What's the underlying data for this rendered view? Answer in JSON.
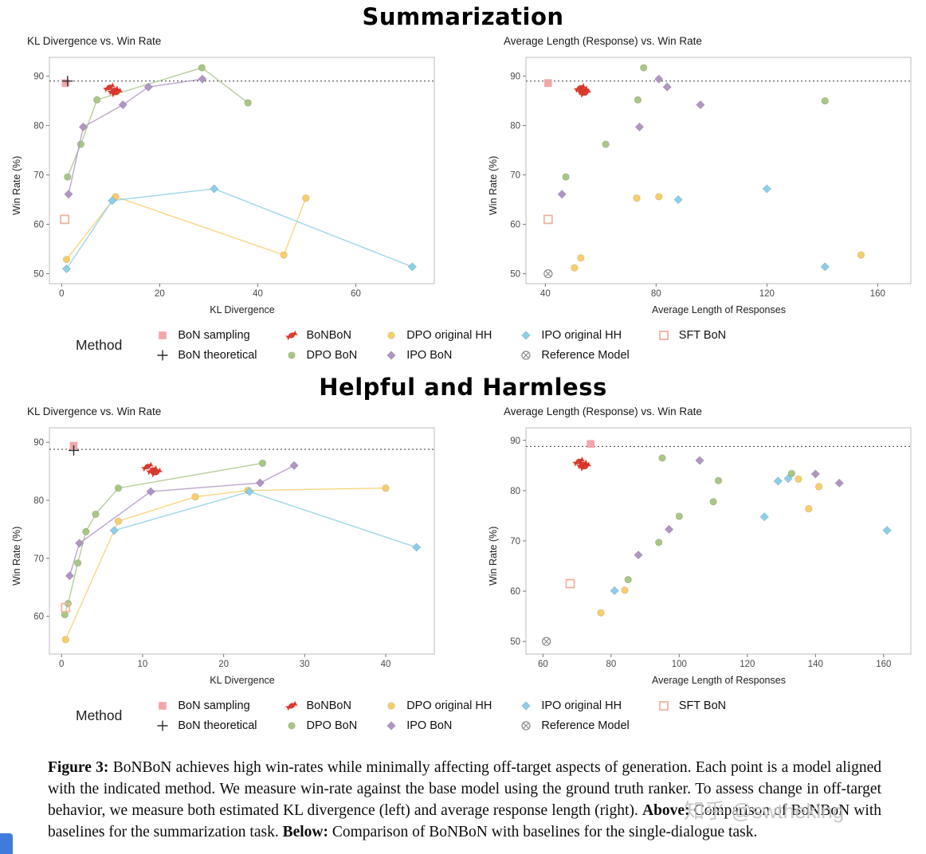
{
  "sections": [
    {
      "title": "Summarization"
    },
    {
      "title": "Helpful and Harmless"
    }
  ],
  "legend": {
    "label": "Method",
    "items": [
      {
        "name": "BoN sampling",
        "marker": "square",
        "color": "#f2a6a8"
      },
      {
        "name": "BoN theoretical",
        "marker": "plus",
        "color": "#2f2f2f"
      },
      {
        "name": "BoNBoN",
        "marker": "candy",
        "color": "#e03a2c"
      },
      {
        "name": "DPO BoN",
        "marker": "circle",
        "color": "#a8c686"
      },
      {
        "name": "DPO original HH",
        "marker": "circle",
        "color": "#f7ce6b"
      },
      {
        "name": "IPO BoN",
        "marker": "diamond",
        "color": "#b195c4"
      },
      {
        "name": "IPO original HH",
        "marker": "diamond",
        "color": "#8bcfe8"
      },
      {
        "name": "Reference Model",
        "marker": "circle-x",
        "color": "#8a8a8a"
      },
      {
        "name": "SFT BoN",
        "marker": "open-square",
        "color": "#f0b39e"
      }
    ]
  },
  "chart_data": [
    {
      "type": "scatter",
      "title": "KL Divergence vs. Win Rate",
      "xlabel": "KL Divergence",
      "ylabel": "Win Rate (%)",
      "xlim": [
        -2.5,
        76
      ],
      "ylim": [
        48,
        93.8
      ],
      "xticks": [
        0,
        20,
        40,
        60
      ],
      "yticks": [
        50,
        60,
        70,
        80,
        90
      ],
      "ref_line_y": 89,
      "series": [
        {
          "name": "DPO BoN",
          "marker": "circle",
          "color": "#a8c686",
          "line": true,
          "points": [
            [
              1.2,
              69.6
            ],
            [
              3.9,
              76.2
            ],
            [
              7.2,
              85.2
            ],
            [
              28.6,
              91.7
            ],
            [
              38,
              84.6
            ]
          ]
        },
        {
          "name": "IPO BoN",
          "marker": "diamond",
          "color": "#b195c4",
          "line": true,
          "points": [
            [
              1.4,
              66.1
            ],
            [
              4.4,
              79.7
            ],
            [
              12.5,
              84.2
            ],
            [
              17.7,
              87.8
            ],
            [
              28.7,
              89.4
            ]
          ]
        },
        {
          "name": "DPO original HH",
          "marker": "circle",
          "color": "#f7ce6b",
          "line": true,
          "points": [
            [
              1,
              52.9
            ],
            [
              11,
              65.6
            ],
            [
              45.3,
              53.8
            ],
            [
              49.8,
              65.3
            ]
          ]
        },
        {
          "name": "IPO original HH",
          "marker": "diamond",
          "color": "#8bcfe8",
          "line": true,
          "points": [
            [
              1,
              51
            ],
            [
              10.3,
              64.8
            ],
            [
              31.1,
              67.2
            ],
            [
              71.5,
              51.4
            ]
          ]
        },
        {
          "name": "SFT BoN",
          "marker": "open-square",
          "color": "#f0b39e",
          "line": false,
          "points": [
            [
              0.6,
              61
            ]
          ]
        },
        {
          "name": "BoN sampling",
          "marker": "square",
          "color": "#f2a6a8",
          "line": false,
          "points": [
            [
              0.8,
              88.6
            ]
          ]
        },
        {
          "name": "BoN theoretical",
          "marker": "plus",
          "color": "#2f2f2f",
          "line": false,
          "points": [
            [
              1.2,
              89
            ]
          ]
        },
        {
          "name": "BoNBoN",
          "marker": "candy",
          "color": "#e03a2c",
          "line": false,
          "points": [
            [
              9.7,
              87.7
            ],
            [
              10.6,
              87.1
            ],
            [
              11.2,
              86.7
            ]
          ]
        }
      ]
    },
    {
      "type": "scatter",
      "title": "Average Length (Response) vs. Win Rate",
      "xlabel": "Average Length of Responses",
      "ylabel": "Win Rate (%)",
      "xlim": [
        33,
        172
      ],
      "ylim": [
        48,
        93.8
      ],
      "xticks": [
        40,
        80,
        120,
        160
      ],
      "yticks": [
        50,
        60,
        70,
        80,
        90
      ],
      "ref_line_y": 89,
      "series": [
        {
          "name": "DPO BoN",
          "marker": "circle",
          "color": "#a8c686",
          "line": false,
          "points": [
            [
              47.4,
              69.6
            ],
            [
              61.8,
              76.2
            ],
            [
              73.4,
              85.2
            ],
            [
              75.5,
              91.7
            ],
            [
              141,
              85
            ]
          ]
        },
        {
          "name": "IPO BoN",
          "marker": "diamond",
          "color": "#b195c4",
          "line": false,
          "points": [
            [
              46,
              66.1
            ],
            [
              74,
              79.7
            ],
            [
              81,
              89.4
            ],
            [
              84,
              87.8
            ],
            [
              96,
              84.2
            ]
          ]
        },
        {
          "name": "DPO original HH",
          "marker": "circle",
          "color": "#f7ce6b",
          "line": false,
          "points": [
            [
              50.5,
              51.2
            ],
            [
              52.8,
              53.2
            ],
            [
              73,
              65.3
            ],
            [
              81,
              65.6
            ],
            [
              154,
              53.8
            ]
          ]
        },
        {
          "name": "IPO original HH",
          "marker": "diamond",
          "color": "#8bcfe8",
          "line": false,
          "points": [
            [
              88,
              65
            ],
            [
              120,
              67.2
            ],
            [
              141,
              51.4
            ]
          ]
        },
        {
          "name": "Reference Model",
          "marker": "circle-x",
          "color": "#8a8a8a",
          "line": false,
          "points": [
            [
              41,
              50
            ]
          ]
        },
        {
          "name": "SFT BoN",
          "marker": "open-square",
          "color": "#f0b39e",
          "line": false,
          "points": [
            [
              41,
              61
            ]
          ]
        },
        {
          "name": "BoN sampling",
          "marker": "square",
          "color": "#f2a6a8",
          "line": false,
          "points": [
            [
              41,
              88.6
            ]
          ]
        },
        {
          "name": "BoNBoN",
          "marker": "candy",
          "color": "#e03a2c",
          "line": false,
          "points": [
            [
              52.5,
              87.6
            ],
            [
              53.6,
              87.1
            ],
            [
              54.4,
              86.6
            ]
          ]
        }
      ]
    },
    {
      "type": "scatter",
      "title": "KL Divergence vs. Win Rate",
      "xlabel": "KL Divergence",
      "ylabel": "Win Rate (%)",
      "xlim": [
        -1.5,
        46
      ],
      "ylim": [
        53.5,
        92.5
      ],
      "xticks": [
        0,
        10,
        20,
        30,
        40
      ],
      "yticks": [
        60,
        70,
        80,
        90
      ],
      "ref_line_y": 88.8,
      "series": [
        {
          "name": "DPO BoN",
          "marker": "circle",
          "color": "#a8c686",
          "line": true,
          "points": [
            [
              0.4,
              60.3
            ],
            [
              0.8,
              62.2
            ],
            [
              2,
              69.2
            ],
            [
              3,
              74.6
            ],
            [
              4.2,
              77.6
            ],
            [
              7,
              82.1
            ],
            [
              24.8,
              86.4
            ]
          ]
        },
        {
          "name": "IPO BoN",
          "marker": "diamond",
          "color": "#b195c4",
          "line": true,
          "points": [
            [
              1,
              67
            ],
            [
              2.2,
              72.6
            ],
            [
              11,
              81.5
            ],
            [
              24.5,
              83
            ],
            [
              28.7,
              86
            ]
          ]
        },
        {
          "name": "DPO original HH",
          "marker": "circle",
          "color": "#f7ce6b",
          "line": true,
          "points": [
            [
              0.5,
              56
            ],
            [
              7,
              76.4
            ],
            [
              16.5,
              80.6
            ],
            [
              23,
              81.7
            ],
            [
              40,
              82.1
            ]
          ]
        },
        {
          "name": "IPO original HH",
          "marker": "diamond",
          "color": "#8bcfe8",
          "line": true,
          "points": [
            [
              6.5,
              74.8
            ],
            [
              23.2,
              81.5
            ],
            [
              43.8,
              71.9
            ]
          ]
        },
        {
          "name": "SFT BoN",
          "marker": "open-square",
          "color": "#f0b39e",
          "line": false,
          "points": [
            [
              0.5,
              61.5
            ]
          ]
        },
        {
          "name": "BoN sampling",
          "marker": "square",
          "color": "#f2a6a8",
          "line": false,
          "points": [
            [
              1.5,
              89.4
            ]
          ]
        },
        {
          "name": "BoN theoretical",
          "marker": "plus",
          "color": "#2f2f2f",
          "line": false,
          "points": [
            [
              1.5,
              88.6
            ]
          ]
        },
        {
          "name": "BoNBoN",
          "marker": "candy",
          "color": "#e03a2c",
          "line": false,
          "points": [
            [
              10.6,
              85.8
            ],
            [
              11.2,
              85.2
            ],
            [
              11.7,
              84.8
            ]
          ]
        }
      ]
    },
    {
      "type": "scatter",
      "title": "Average Length (Response) vs. Win Rate",
      "xlabel": "Average Length of Responses",
      "ylabel": "Win Rate (%)",
      "xlim": [
        55,
        168
      ],
      "ylim": [
        47.5,
        92.5
      ],
      "xticks": [
        60,
        80,
        100,
        120,
        140,
        160
      ],
      "yticks": [
        50,
        60,
        70,
        80,
        90
      ],
      "ref_line_y": 88.8,
      "series": [
        {
          "name": "DPO BoN",
          "marker": "circle",
          "color": "#a8c686",
          "line": false,
          "points": [
            [
              85,
              62.3
            ],
            [
              94,
              69.7
            ],
            [
              95,
              86.5
            ],
            [
              100,
              74.9
            ],
            [
              110,
              77.8
            ],
            [
              111.5,
              82
            ],
            [
              133,
              83.4
            ]
          ]
        },
        {
          "name": "IPO BoN",
          "marker": "diamond",
          "color": "#b195c4",
          "line": false,
          "points": [
            [
              88,
              67.2
            ],
            [
              97,
              72.3
            ],
            [
              106,
              86
            ],
            [
              140,
              83.3
            ],
            [
              147,
              81.5
            ]
          ]
        },
        {
          "name": "DPO original HH",
          "marker": "circle",
          "color": "#f7ce6b",
          "line": false,
          "points": [
            [
              77,
              55.7
            ],
            [
              84,
              60.2
            ],
            [
              135,
              82.3
            ],
            [
              138,
              76.4
            ],
            [
              141,
              80.8
            ]
          ]
        },
        {
          "name": "IPO original HH",
          "marker": "diamond",
          "color": "#8bcfe8",
          "line": false,
          "points": [
            [
              81,
              60.1
            ],
            [
              125,
              74.8
            ],
            [
              129,
              81.9
            ],
            [
              132,
              82.4
            ],
            [
              161,
              72.1
            ]
          ]
        },
        {
          "name": "Reference Model",
          "marker": "circle-x",
          "color": "#8a8a8a",
          "line": false,
          "points": [
            [
              61,
              50
            ]
          ]
        },
        {
          "name": "SFT BoN",
          "marker": "open-square",
          "color": "#f0b39e",
          "line": false,
          "points": [
            [
              68,
              61.5
            ]
          ]
        },
        {
          "name": "BoN sampling",
          "marker": "square",
          "color": "#f2a6a8",
          "line": false,
          "points": [
            [
              74,
              89.3
            ]
          ]
        },
        {
          "name": "BoNBoN",
          "marker": "candy",
          "color": "#e03a2c",
          "line": false,
          "points": [
            [
              70.5,
              85.8
            ],
            [
              71.6,
              85.2
            ],
            [
              72.4,
              84.8
            ]
          ]
        }
      ]
    }
  ],
  "caption": {
    "segments": [
      {
        "text": "Figure 3: ",
        "bold": true
      },
      {
        "text": "BoNBoN achieves high win-rates while minimally affecting off-target aspects of generation. Each point is a model aligned with the indicated method. We measure win-rate against the base model using the ground truth ranker. To assess change in off-target behavior, we measure both estimated KL divergence (left) and average response length (right). ",
        "bold": false
      },
      {
        "text": "Above: ",
        "bold": true
      },
      {
        "text": "Comparison of BoNBoN with baselines for the summarization task. ",
        "bold": false
      },
      {
        "text": "Below: ",
        "bold": true
      },
      {
        "text": "Comparison of BoNBoN with baselines for the single-dialogue task.",
        "bold": false
      }
    ]
  },
  "watermark": "知乎 @swtheking"
}
